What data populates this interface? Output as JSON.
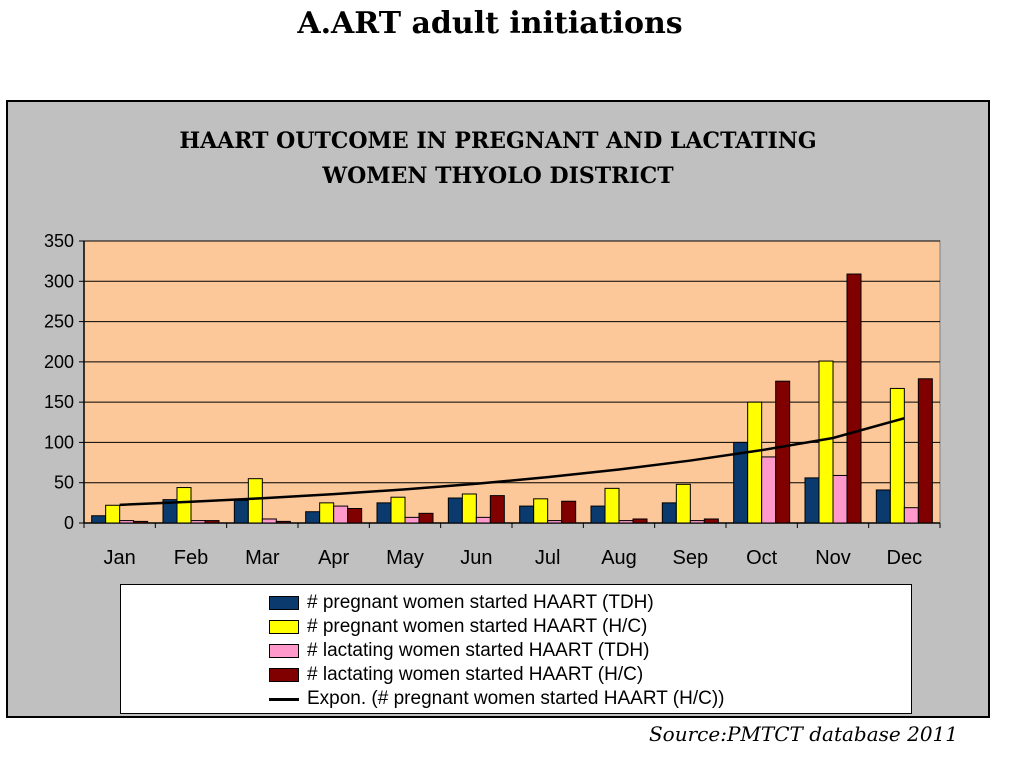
{
  "slide": {
    "title": "A.ART adult initiations",
    "source": "Source:PMTCT database 2011"
  },
  "chart_data": {
    "type": "bar",
    "title_lines": [
      "HAART OUTCOME IN PREGNANT AND LACTATING",
      "WOMEN THYOLO DISTRICT"
    ],
    "categories": [
      "Jan",
      "Feb",
      "Mar",
      "Apr",
      "May",
      "Jun",
      "Jul",
      "Aug",
      "Sep",
      "Oct",
      "Nov",
      "Dec"
    ],
    "ylim": [
      0,
      350
    ],
    "yticks": [
      0,
      50,
      100,
      150,
      200,
      250,
      300,
      350
    ],
    "grid": true,
    "plot_background": "#fcc89a",
    "series": [
      {
        "name": "# pregnant women started HAART (TDH)",
        "color": "#0a3a6e",
        "values": [
          9,
          29,
          28,
          14,
          25,
          31,
          21,
          21,
          25,
          100,
          56,
          41
        ]
      },
      {
        "name": "# pregnant women started HAART (H/C)",
        "color": "#ffff00",
        "values": [
          22,
          44,
          55,
          25,
          32,
          36,
          30,
          43,
          48,
          150,
          201,
          167
        ]
      },
      {
        "name": "# lactating women started HAART (TDH)",
        "color": "#ff99cc",
        "values": [
          3,
          3,
          5,
          21,
          7,
          7,
          3,
          3,
          3,
          82,
          59,
          19
        ]
      },
      {
        "name": "# lactating women started HAART (H/C)",
        "color": "#800000",
        "values": [
          2,
          3,
          2,
          18,
          12,
          34,
          27,
          5,
          5,
          176,
          309,
          179
        ]
      }
    ],
    "trendline": {
      "name": "Expon. (# pregnant women started HAART (H/C))",
      "type": "exponential",
      "color": "#000000",
      "values": [
        22.5,
        26.3,
        30.7,
        35.8,
        41.8,
        48.7,
        56.9,
        66.4,
        77.5,
        90.4,
        105.5,
        130
      ]
    },
    "legend": "bottom"
  }
}
